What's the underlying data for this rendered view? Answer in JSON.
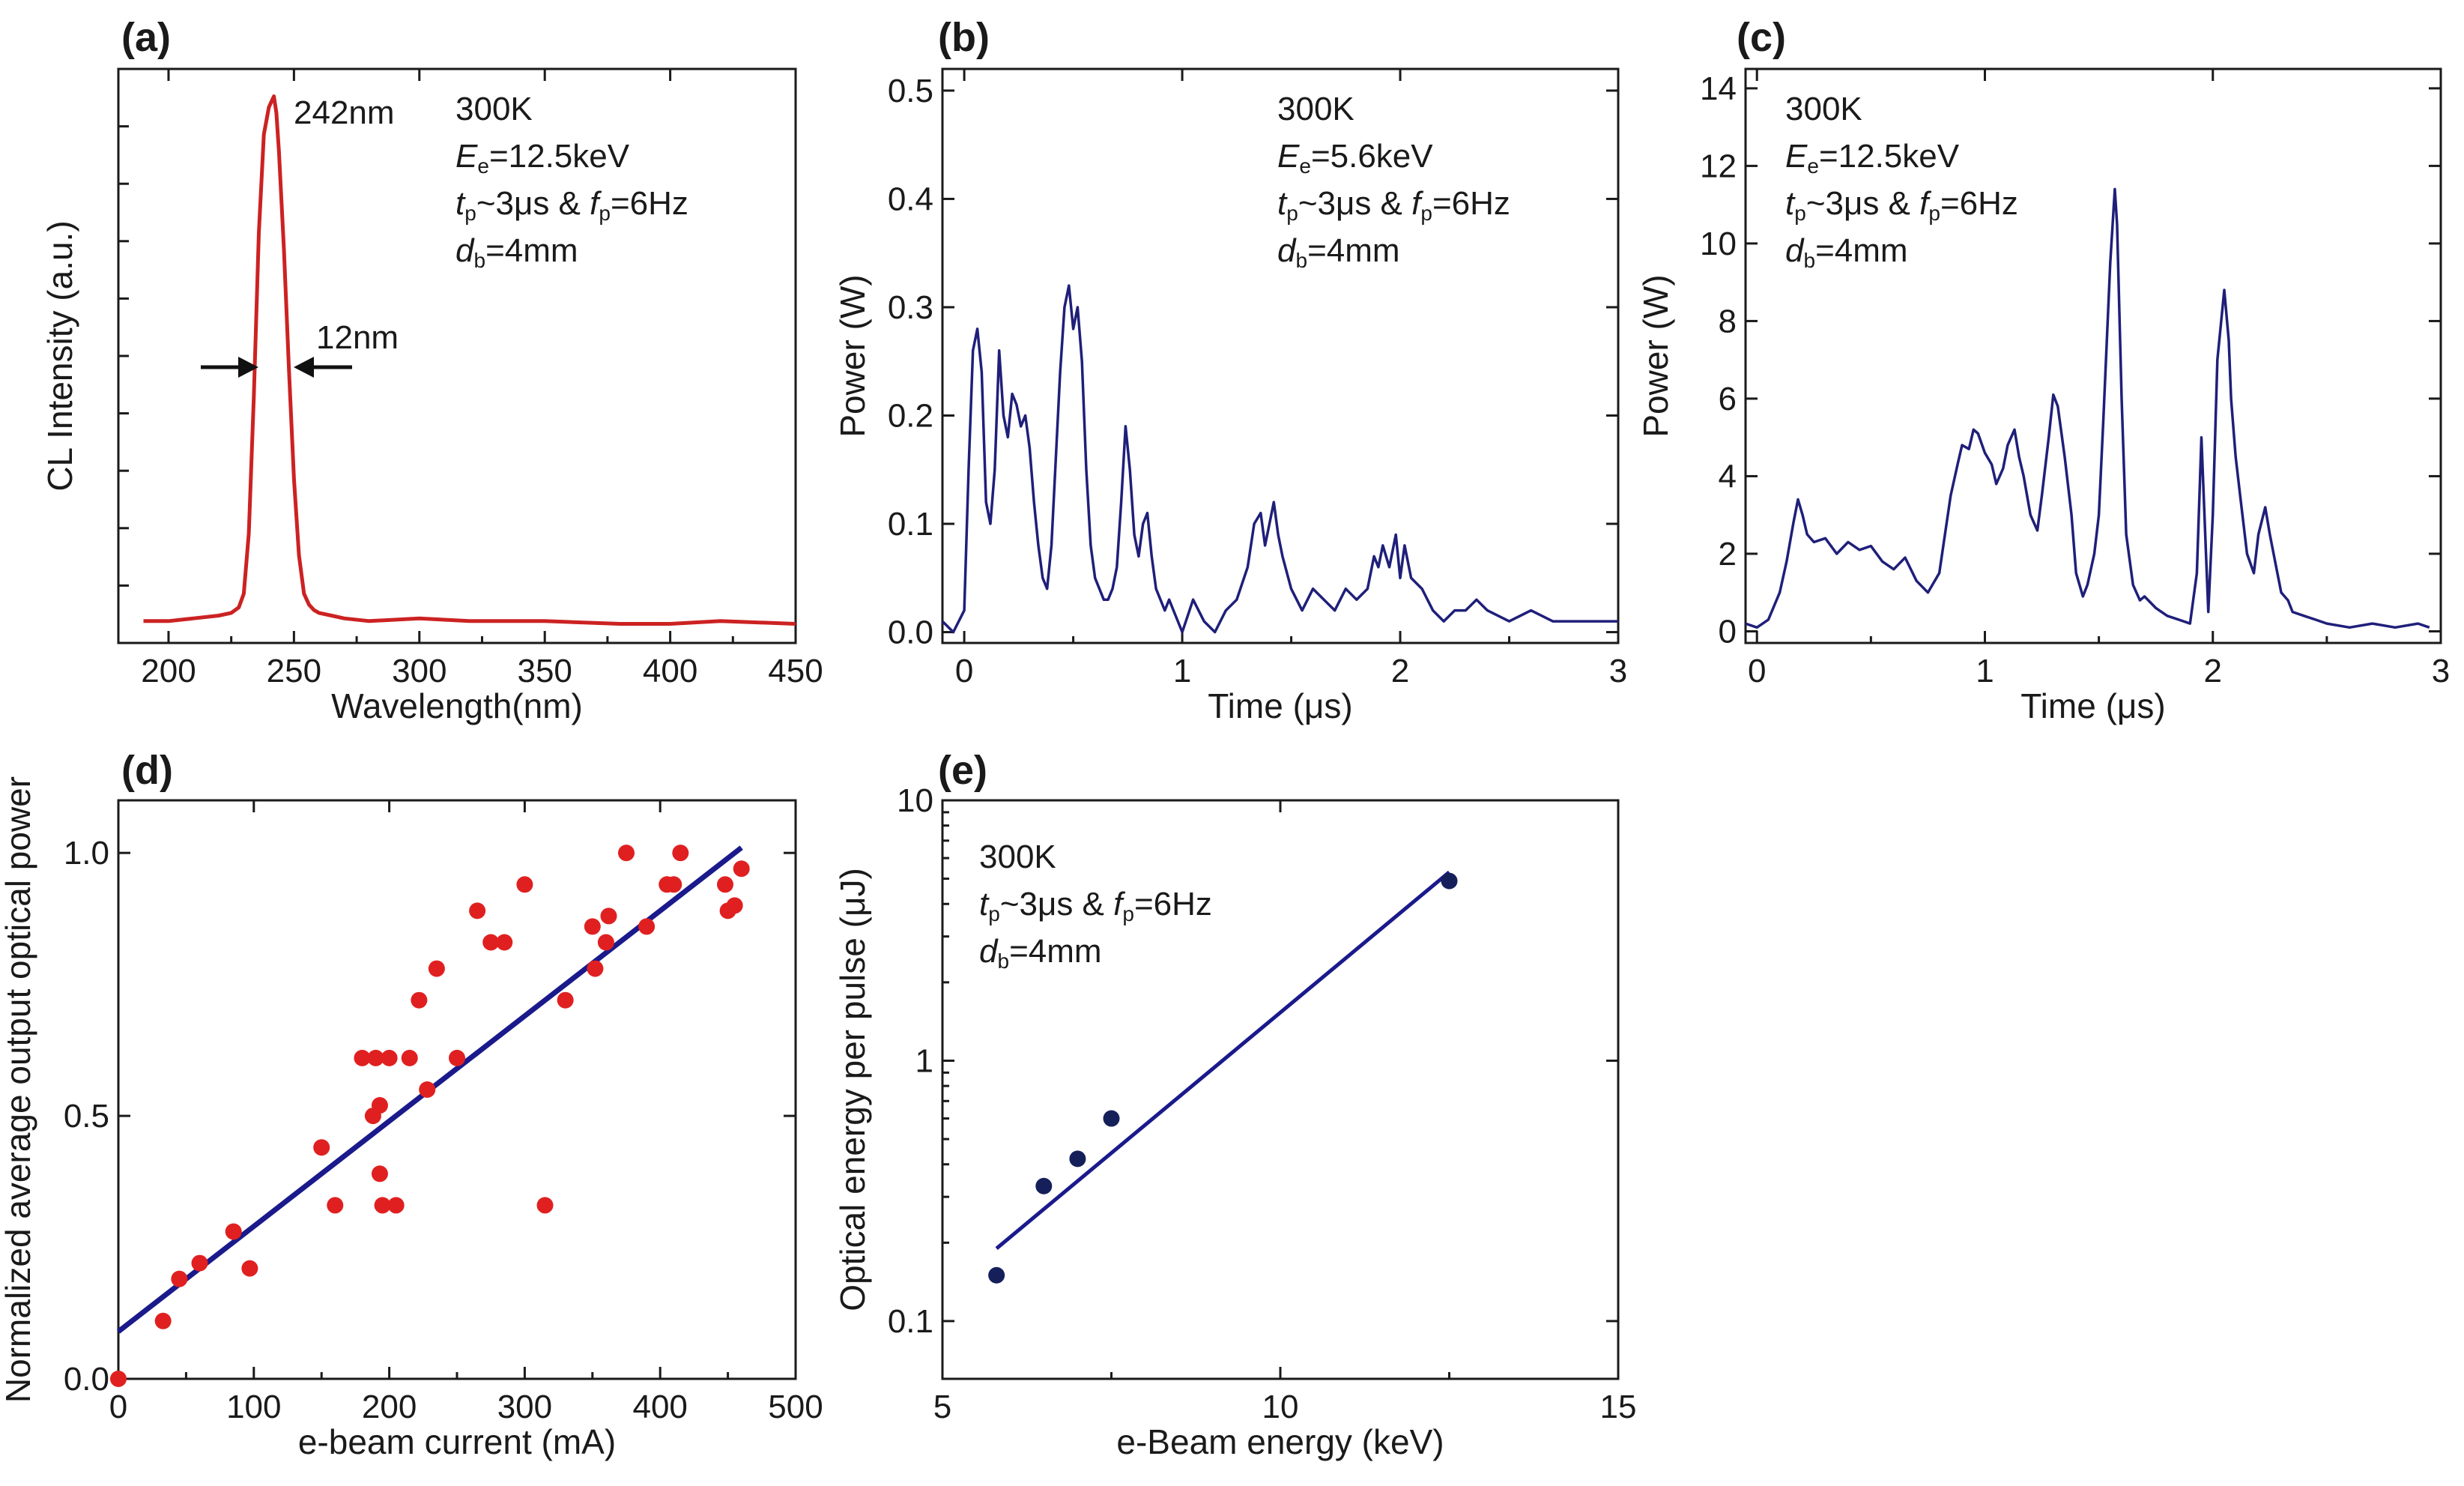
{
  "colors": {
    "spectrum": "#cc2222",
    "trace": "#1f1f7a",
    "points_d": "#e02020",
    "fit": "#1a1a8c",
    "points_e": "#15205a"
  },
  "chart_data": [
    {
      "id": "a",
      "panel_label": "(a)",
      "type": "line",
      "xlabel": "Wavelength(nm)",
      "ylabel": "CL Intensity (a.u.)",
      "xlim": [
        180,
        450
      ],
      "ylim": [
        0,
        1.05
      ],
      "xticks": [
        200,
        250,
        300,
        350,
        400,
        450
      ],
      "xtick_labels": [
        "200",
        "250",
        "300",
        "350",
        "400",
        "450"
      ],
      "annotations": [
        "300K",
        "E",
        "e",
        "=12.5keV",
        "t",
        "p",
        "~3μs & ",
        "f",
        "p",
        "=6Hz",
        "d",
        "b",
        "=4mm"
      ],
      "peak_label": "242nm",
      "fwhm_label": "12nm",
      "series": [
        {
          "name": "CL spectrum",
          "x": [
            190,
            200,
            210,
            220,
            225,
            228,
            230,
            232,
            234,
            236,
            238,
            240,
            241,
            242,
            243,
            244,
            246,
            248,
            250,
            252,
            254,
            256,
            258,
            260,
            265,
            270,
            280,
            300,
            320,
            350,
            380,
            400,
            420,
            450
          ],
          "y": [
            0.04,
            0.04,
            0.045,
            0.05,
            0.055,
            0.065,
            0.09,
            0.2,
            0.45,
            0.75,
            0.93,
            0.98,
            0.99,
            1.0,
            0.97,
            0.9,
            0.72,
            0.5,
            0.3,
            0.16,
            0.09,
            0.07,
            0.06,
            0.055,
            0.05,
            0.045,
            0.04,
            0.045,
            0.04,
            0.04,
            0.035,
            0.035,
            0.04,
            0.035
          ]
        }
      ]
    },
    {
      "id": "b",
      "panel_label": "(b)",
      "type": "line",
      "xlabel": "Time (μs)",
      "ylabel": "Power (W)",
      "xlim": [
        -0.1,
        3
      ],
      "ylim": [
        -0.01,
        0.52
      ],
      "xticks": [
        0,
        1,
        2,
        3
      ],
      "xtick_labels": [
        "0",
        "1",
        "2",
        "3"
      ],
      "yticks": [
        0,
        0.1,
        0.2,
        0.3,
        0.4,
        0.5
      ],
      "ytick_labels": [
        "0.0",
        "0.1",
        "0.2",
        "0.3",
        "0.4",
        "0.5"
      ],
      "annotations": [
        "300K",
        "E",
        "e",
        "=5.6keV",
        "t",
        "p",
        "~3μs & ",
        "f",
        "p",
        "=6Hz",
        "d",
        "b",
        "=4mm"
      ],
      "series": [
        {
          "name": "Power",
          "x": [
            -0.1,
            -0.05,
            0,
            0.02,
            0.04,
            0.06,
            0.08,
            0.1,
            0.12,
            0.14,
            0.16,
            0.18,
            0.2,
            0.22,
            0.24,
            0.26,
            0.28,
            0.3,
            0.32,
            0.34,
            0.36,
            0.38,
            0.4,
            0.42,
            0.44,
            0.46,
            0.48,
            0.5,
            0.52,
            0.54,
            0.56,
            0.58,
            0.6,
            0.62,
            0.64,
            0.66,
            0.68,
            0.7,
            0.72,
            0.74,
            0.76,
            0.78,
            0.8,
            0.82,
            0.84,
            0.86,
            0.88,
            0.9,
            0.92,
            0.94,
            0.96,
            1.0,
            1.05,
            1.1,
            1.15,
            1.2,
            1.25,
            1.3,
            1.33,
            1.36,
            1.38,
            1.4,
            1.42,
            1.44,
            1.46,
            1.5,
            1.55,
            1.6,
            1.65,
            1.7,
            1.75,
            1.8,
            1.85,
            1.88,
            1.9,
            1.92,
            1.95,
            1.98,
            2.0,
            2.02,
            2.05,
            2.1,
            2.15,
            2.2,
            2.25,
            2.3,
            2.35,
            2.4,
            2.5,
            2.6,
            2.7,
            2.8,
            2.9,
            3.0
          ],
          "y": [
            0.01,
            0.0,
            0.02,
            0.15,
            0.26,
            0.28,
            0.24,
            0.12,
            0.1,
            0.15,
            0.26,
            0.2,
            0.18,
            0.22,
            0.21,
            0.19,
            0.2,
            0.17,
            0.12,
            0.08,
            0.05,
            0.04,
            0.08,
            0.16,
            0.24,
            0.3,
            0.32,
            0.28,
            0.3,
            0.25,
            0.15,
            0.08,
            0.05,
            0.04,
            0.03,
            0.03,
            0.04,
            0.06,
            0.12,
            0.19,
            0.15,
            0.09,
            0.07,
            0.1,
            0.11,
            0.07,
            0.04,
            0.03,
            0.02,
            0.03,
            0.02,
            0.0,
            0.03,
            0.01,
            0.0,
            0.02,
            0.03,
            0.06,
            0.1,
            0.11,
            0.08,
            0.1,
            0.12,
            0.09,
            0.07,
            0.04,
            0.02,
            0.04,
            0.03,
            0.02,
            0.04,
            0.03,
            0.04,
            0.07,
            0.06,
            0.08,
            0.06,
            0.09,
            0.05,
            0.08,
            0.05,
            0.04,
            0.02,
            0.01,
            0.02,
            0.02,
            0.03,
            0.02,
            0.01,
            0.02,
            0.01,
            0.01,
            0.01,
            0.01
          ]
        }
      ]
    },
    {
      "id": "c",
      "panel_label": "(c)",
      "type": "line",
      "xlabel": "Time (μs)",
      "ylabel": "Power (W)",
      "xlim": [
        -0.05,
        3
      ],
      "ylim": [
        -0.3,
        14.5
      ],
      "xticks": [
        0,
        1,
        2,
        3
      ],
      "xtick_labels": [
        "0",
        "1",
        "2",
        "3"
      ],
      "yticks": [
        0,
        2,
        4,
        6,
        8,
        10,
        12,
        14
      ],
      "ytick_labels": [
        "0",
        "2",
        "4",
        "6",
        "8",
        "10",
        "12",
        "14"
      ],
      "annotations": [
        "300K",
        "E",
        "e",
        "=12.5keV",
        "t",
        "p",
        "~3μs & ",
        "f",
        "p",
        "=6Hz",
        "d",
        "b",
        "=4mm"
      ],
      "series": [
        {
          "name": "Power",
          "x": [
            -0.05,
            0.0,
            0.05,
            0.1,
            0.13,
            0.16,
            0.18,
            0.2,
            0.22,
            0.25,
            0.3,
            0.35,
            0.4,
            0.45,
            0.5,
            0.55,
            0.6,
            0.65,
            0.7,
            0.75,
            0.8,
            0.85,
            0.88,
            0.9,
            0.93,
            0.95,
            0.97,
            1.0,
            1.03,
            1.05,
            1.08,
            1.1,
            1.13,
            1.15,
            1.17,
            1.2,
            1.23,
            1.25,
            1.28,
            1.3,
            1.32,
            1.35,
            1.38,
            1.4,
            1.43,
            1.45,
            1.48,
            1.5,
            1.52,
            1.55,
            1.57,
            1.58,
            1.6,
            1.62,
            1.65,
            1.68,
            1.7,
            1.75,
            1.8,
            1.85,
            1.9,
            1.93,
            1.95,
            1.97,
            1.98,
            2.0,
            2.02,
            2.05,
            2.07,
            2.08,
            2.1,
            2.12,
            2.15,
            2.18,
            2.2,
            2.23,
            2.25,
            2.28,
            2.3,
            2.33,
            2.35,
            2.4,
            2.45,
            2.5,
            2.6,
            2.7,
            2.8,
            2.9,
            2.95
          ],
          "y": [
            0.2,
            0.1,
            0.3,
            1.0,
            1.8,
            2.8,
            3.4,
            3.0,
            2.5,
            2.3,
            2.4,
            2.0,
            2.3,
            2.1,
            2.2,
            1.8,
            1.6,
            1.9,
            1.3,
            1.0,
            1.5,
            3.5,
            4.3,
            4.8,
            4.7,
            5.2,
            5.1,
            4.6,
            4.3,
            3.8,
            4.2,
            4.8,
            5.2,
            4.5,
            4.0,
            3.0,
            2.6,
            3.5,
            5.0,
            6.1,
            5.8,
            4.5,
            3.0,
            1.5,
            0.9,
            1.2,
            2.0,
            3.0,
            5.5,
            9.5,
            11.4,
            10.5,
            6.0,
            2.5,
            1.2,
            0.8,
            0.9,
            0.6,
            0.4,
            0.3,
            0.2,
            1.5,
            5.0,
            2.0,
            0.5,
            3.0,
            7.0,
            8.8,
            7.5,
            6.0,
            4.5,
            3.5,
            2.0,
            1.5,
            2.5,
            3.2,
            2.5,
            1.6,
            1.0,
            0.8,
            0.5,
            0.4,
            0.3,
            0.2,
            0.1,
            0.2,
            0.1,
            0.2,
            0.1
          ]
        }
      ]
    },
    {
      "id": "d",
      "panel_label": "(d)",
      "type": "scatter",
      "xlabel": "e-beam current (mA)",
      "ylabel": "Normalized average output optical power",
      "xlim": [
        0,
        500
      ],
      "ylim": [
        0,
        1.1
      ],
      "xticks": [
        0,
        100,
        200,
        300,
        400,
        500
      ],
      "xtick_labels": [
        "0",
        "100",
        "200",
        "300",
        "400",
        "500"
      ],
      "yticks": [
        0,
        0.5,
        1.0
      ],
      "ytick_labels": [
        "0.0",
        "0.5",
        "1.0"
      ],
      "points": {
        "x": [
          0,
          33,
          45,
          60,
          85,
          97,
          150,
          160,
          180,
          188,
          190,
          193,
          193,
          195,
          200,
          205,
          215,
          222,
          228,
          235,
          250,
          265,
          275,
          285,
          300,
          315,
          330,
          350,
          352,
          360,
          362,
          375,
          390,
          405,
          410,
          415,
          448,
          450,
          455,
          460
        ],
        "y": [
          0,
          0.11,
          0.19,
          0.22,
          0.28,
          0.21,
          0.44,
          0.33,
          0.61,
          0.5,
          0.61,
          0.52,
          0.39,
          0.33,
          0.61,
          0.33,
          0.61,
          0.72,
          0.55,
          0.78,
          0.61,
          0.89,
          0.83,
          0.83,
          0.94,
          0.33,
          0.72,
          0.86,
          0.78,
          0.83,
          0.88,
          1.0,
          0.86,
          0.94,
          0.94,
          1.0,
          0.94,
          0.89,
          0.9,
          0.97
        ]
      },
      "fit": {
        "x": [
          0,
          460
        ],
        "y": [
          0.09,
          1.01
        ]
      }
    },
    {
      "id": "e",
      "panel_label": "(e)",
      "type": "scatter",
      "xlabel": "e-Beam energy (keV)",
      "ylabel": "Optical energy per pulse (μJ)",
      "xlim": [
        5,
        15
      ],
      "ylim": [
        0.06,
        10
      ],
      "yscale": "log",
      "xticks": [
        5,
        10,
        15
      ],
      "xtick_labels": [
        "5",
        "10",
        "15"
      ],
      "yticks": [
        0.1,
        1,
        10
      ],
      "ytick_labels": [
        "0.1",
        "1",
        "10"
      ],
      "annotations": [
        "300K",
        "t",
        "p",
        "~3μs & ",
        "f",
        "p",
        "=6Hz",
        "d",
        "b",
        "=4mm"
      ],
      "points": {
        "x": [
          5.8,
          6.5,
          7.0,
          7.5,
          12.5
        ],
        "y": [
          0.15,
          0.33,
          0.42,
          0.6,
          4.9
        ]
      },
      "fit": {
        "x": [
          5.8,
          12.5
        ],
        "y": [
          0.19,
          5.3
        ]
      }
    }
  ]
}
